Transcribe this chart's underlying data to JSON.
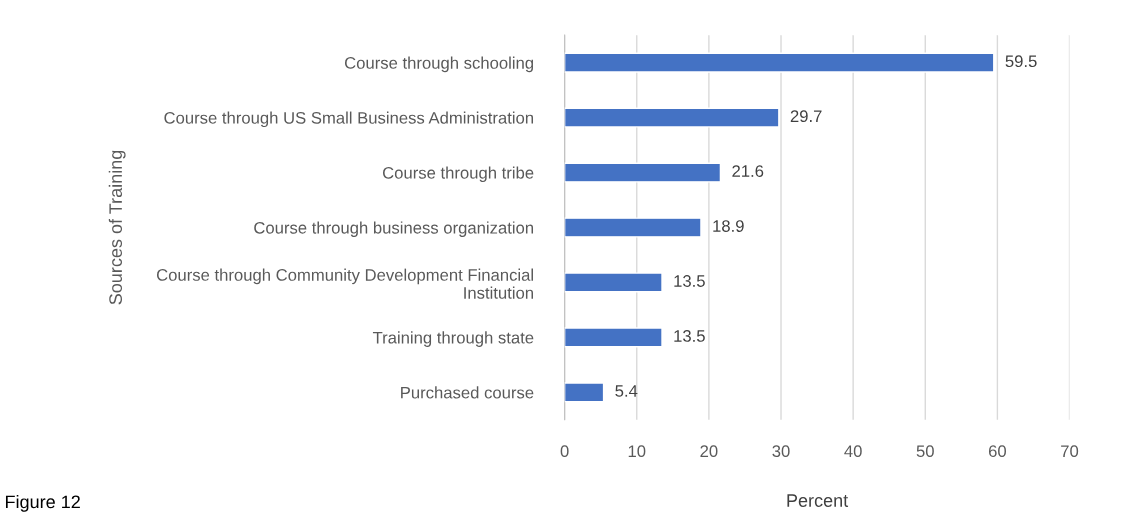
{
  "chart_data": {
    "type": "bar",
    "orientation": "horizontal",
    "categories": [
      "Course through schooling",
      "Course through US Small Business Administration",
      "Course through tribe",
      "Course through business organization",
      "Course through Community Development Financial\nInstitution",
      "Training through state",
      "Purchased course"
    ],
    "values": [
      59.5,
      29.7,
      21.6,
      18.9,
      13.5,
      13.5,
      5.4
    ],
    "color": "#4472c4",
    "xlim": [
      0,
      70
    ],
    "xticks": [
      0,
      10,
      20,
      30,
      40,
      50,
      60,
      70
    ],
    "xlabel": "Percent",
    "ylabel": "Sources of Training",
    "grid": "x",
    "data_labels": true,
    "annotations": [
      "Figure 12"
    ]
  }
}
